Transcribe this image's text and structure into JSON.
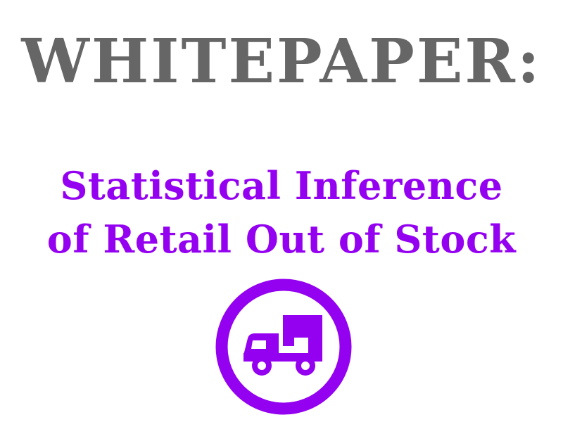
{
  "headline": "WHITEPAPER:",
  "subtitle": {
    "line1": "Statistical Inference",
    "line2": "of Retail Out of Stock"
  },
  "badge": {
    "icon": "delivery-truck-icon"
  },
  "colors": {
    "headline": "#666666",
    "accent": "#9400f0",
    "background": "#ffffff"
  }
}
